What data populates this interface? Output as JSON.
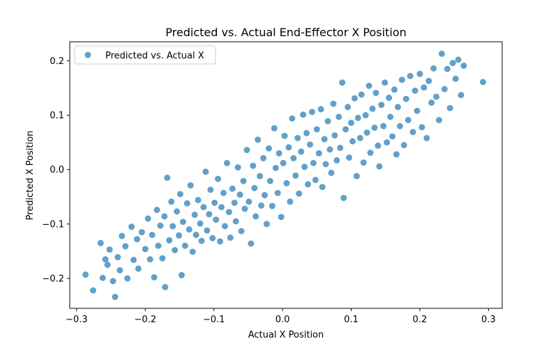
{
  "chart_data": {
    "type": "scatter",
    "title": "Predicted vs. Actual End-Effector X Position",
    "xlabel": "Actual X Position",
    "ylabel": "Predicted X Position",
    "xlim": [
      -0.31,
      0.32
    ],
    "ylim": [
      -0.255,
      0.235
    ],
    "xticks": [
      -0.3,
      -0.2,
      -0.1,
      0.0,
      0.1,
      0.2,
      0.3
    ],
    "xtick_labels": [
      "−0.3",
      "−0.2",
      "−0.1",
      "0.0",
      "0.1",
      "0.2",
      "0.3"
    ],
    "yticks": [
      -0.2,
      -0.1,
      0.0,
      0.1,
      0.2
    ],
    "ytick_labels": [
      "−0.2",
      "−0.1",
      "0.0",
      "0.1",
      "0.2"
    ],
    "grid": false,
    "legend_position": "top-left",
    "marker_color": "#1f77b4",
    "marker_alpha": 0.7,
    "series": [
      {
        "name": "Predicted vs. Actual X",
        "points": [
          [
            -0.287,
            -0.193
          ],
          [
            -0.276,
            -0.222
          ],
          [
            -0.265,
            -0.135
          ],
          [
            -0.262,
            -0.199
          ],
          [
            -0.258,
            -0.165
          ],
          [
            -0.255,
            -0.175
          ],
          [
            -0.252,
            -0.147
          ],
          [
            -0.247,
            -0.205
          ],
          [
            -0.244,
            -0.234
          ],
          [
            -0.24,
            -0.161
          ],
          [
            -0.237,
            -0.185
          ],
          [
            -0.234,
            -0.122
          ],
          [
            -0.229,
            -0.141
          ],
          [
            -0.226,
            -0.2
          ],
          [
            -0.22,
            -0.105
          ],
          [
            -0.217,
            -0.166
          ],
          [
            -0.212,
            -0.128
          ],
          [
            -0.21,
            -0.182
          ],
          [
            -0.205,
            -0.115
          ],
          [
            -0.2,
            -0.146
          ],
          [
            -0.196,
            -0.09
          ],
          [
            -0.193,
            -0.165
          ],
          [
            -0.19,
            -0.12
          ],
          [
            -0.187,
            -0.198
          ],
          [
            -0.183,
            -0.074
          ],
          [
            -0.181,
            -0.14
          ],
          [
            -0.178,
            -0.103
          ],
          [
            -0.175,
            -0.163
          ],
          [
            -0.172,
            -0.086
          ],
          [
            -0.171,
            -0.216
          ],
          [
            -0.168,
            -0.015
          ],
          [
            -0.165,
            -0.13
          ],
          [
            -0.162,
            -0.059
          ],
          [
            -0.16,
            -0.104
          ],
          [
            -0.157,
            -0.148
          ],
          [
            -0.154,
            -0.077
          ],
          [
            -0.151,
            -0.121
          ],
          [
            -0.149,
            -0.045
          ],
          [
            -0.147,
            -0.194
          ],
          [
            -0.145,
            -0.096
          ],
          [
            -0.142,
            -0.14
          ],
          [
            -0.139,
            -0.062
          ],
          [
            -0.136,
            -0.11
          ],
          [
            -0.134,
            -0.029
          ],
          [
            -0.131,
            -0.151
          ],
          [
            -0.128,
            -0.083
          ],
          [
            -0.126,
            -0.12
          ],
          [
            -0.123,
            -0.056
          ],
          [
            -0.12,
            -0.099
          ],
          [
            -0.118,
            -0.131
          ],
          [
            -0.115,
            -0.069
          ],
          [
            -0.112,
            -0.004
          ],
          [
            -0.11,
            -0.112
          ],
          [
            -0.107,
            -0.082
          ],
          [
            -0.105,
            -0.037
          ],
          [
            -0.102,
            -0.126
          ],
          [
            -0.099,
            -0.061
          ],
          [
            -0.097,
            -0.092
          ],
          [
            -0.094,
            -0.017
          ],
          [
            -0.091,
            -0.132
          ],
          [
            -0.089,
            -0.069
          ],
          [
            -0.086,
            -0.043
          ],
          [
            -0.084,
            -0.104
          ],
          [
            -0.081,
            0.012
          ],
          [
            -0.078,
            -0.078
          ],
          [
            -0.076,
            -0.125
          ],
          [
            -0.073,
            -0.035
          ],
          [
            -0.07,
            -0.061
          ],
          [
            -0.068,
            -0.095
          ],
          [
            -0.065,
            0.004
          ],
          [
            -0.062,
            -0.046
          ],
          [
            -0.06,
            -0.113
          ],
          [
            -0.057,
            -0.021
          ],
          [
            -0.055,
            -0.072
          ],
          [
            -0.052,
            0.036
          ],
          [
            -0.049,
            -0.059
          ],
          [
            -0.046,
            -0.136
          ],
          [
            -0.043,
            0.007
          ],
          [
            -0.041,
            -0.034
          ],
          [
            -0.039,
            -0.086
          ],
          [
            -0.036,
            0.055
          ],
          [
            -0.033,
            -0.012
          ],
          [
            -0.031,
            -0.066
          ],
          [
            -0.028,
            0.021
          ],
          [
            -0.026,
            -0.047
          ],
          [
            -0.023,
            -0.1
          ],
          [
            -0.02,
            0.039
          ],
          [
            -0.018,
            -0.021
          ],
          [
            -0.015,
            -0.067
          ],
          [
            -0.012,
            0.076
          ],
          [
            -0.01,
            0.003
          ],
          [
            -0.007,
            -0.043
          ],
          [
            -0.005,
            0.03
          ],
          [
            -0.002,
            -0.087
          ],
          [
            0.001,
            0.012
          ],
          [
            0.003,
            0.062
          ],
          [
            0.006,
            -0.025
          ],
          [
            0.009,
            0.041
          ],
          [
            0.011,
            -0.059
          ],
          [
            0.014,
            0.094
          ],
          [
            0.016,
            0.021
          ],
          [
            0.019,
            -0.011
          ],
          [
            0.022,
            0.058
          ],
          [
            0.024,
            -0.044
          ],
          [
            0.027,
            0.033
          ],
          [
            0.03,
            0.101
          ],
          [
            0.032,
            0.005
          ],
          [
            0.035,
            0.067
          ],
          [
            0.037,
            -0.027
          ],
          [
            0.04,
            0.046
          ],
          [
            0.043,
            0.106
          ],
          [
            0.045,
            0.012
          ],
          [
            0.048,
            -0.019
          ],
          [
            0.05,
            0.074
          ],
          [
            0.053,
            0.03
          ],
          [
            0.056,
            0.111
          ],
          [
            0.058,
            -0.032
          ],
          [
            0.061,
            0.056
          ],
          [
            0.063,
            0.01
          ],
          [
            0.066,
            0.089
          ],
          [
            0.069,
            0.037
          ],
          [
            0.071,
            -0.006
          ],
          [
            0.074,
            0.121
          ],
          [
            0.076,
            0.063
          ],
          [
            0.079,
            0.017
          ],
          [
            0.082,
            0.097
          ],
          [
            0.084,
            0.04
          ],
          [
            0.087,
            0.16
          ],
          [
            0.089,
            -0.052
          ],
          [
            0.092,
            0.074
          ],
          [
            0.095,
            0.115
          ],
          [
            0.097,
            0.022
          ],
          [
            0.1,
            0.086
          ],
          [
            0.102,
            0.052
          ],
          [
            0.105,
            0.131
          ],
          [
            0.108,
            -0.012
          ],
          [
            0.11,
            0.095
          ],
          [
            0.113,
            0.058
          ],
          [
            0.115,
            0.138
          ],
          [
            0.118,
            0.013
          ],
          [
            0.121,
            0.1
          ],
          [
            0.123,
            0.068
          ],
          [
            0.126,
            0.154
          ],
          [
            0.128,
            0.031
          ],
          [
            0.131,
            0.112
          ],
          [
            0.134,
            0.077
          ],
          [
            0.136,
            0.141
          ],
          [
            0.139,
            0.044
          ],
          [
            0.141,
            0.006
          ],
          [
            0.144,
            0.119
          ],
          [
            0.147,
            0.08
          ],
          [
            0.149,
            0.16
          ],
          [
            0.152,
            0.05
          ],
          [
            0.155,
            0.132
          ],
          [
            0.157,
            0.097
          ],
          [
            0.16,
            0.061
          ],
          [
            0.163,
            0.147
          ],
          [
            0.166,
            0.028
          ],
          [
            0.168,
            0.115
          ],
          [
            0.171,
            0.08
          ],
          [
            0.174,
            0.165
          ],
          [
            0.177,
            0.045
          ],
          [
            0.18,
            0.13
          ],
          [
            0.183,
            0.091
          ],
          [
            0.186,
            0.172
          ],
          [
            0.19,
            0.069
          ],
          [
            0.193,
            0.145
          ],
          [
            0.196,
            0.108
          ],
          [
            0.2,
            0.176
          ],
          [
            0.203,
            0.078
          ],
          [
            0.206,
            0.151
          ],
          [
            0.21,
            0.058
          ],
          [
            0.213,
            0.163
          ],
          [
            0.217,
            0.123
          ],
          [
            0.22,
            0.186
          ],
          [
            0.224,
            0.134
          ],
          [
            0.228,
            0.091
          ],
          [
            0.232,
            0.213
          ],
          [
            0.236,
            0.148
          ],
          [
            0.24,
            0.185
          ],
          [
            0.244,
            0.113
          ],
          [
            0.248,
            0.196
          ],
          [
            0.252,
            0.167
          ],
          [
            0.256,
            0.202
          ],
          [
            0.26,
            0.137
          ],
          [
            0.264,
            0.191
          ],
          [
            0.292,
            0.161
          ]
        ]
      }
    ]
  }
}
